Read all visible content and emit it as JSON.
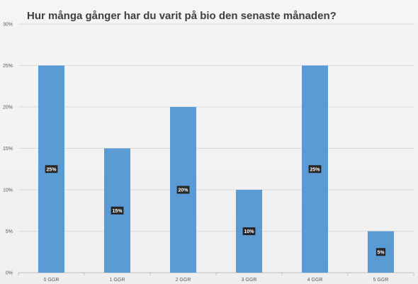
{
  "chart_data": {
    "type": "bar",
    "title": "Hur många gånger har du varit på bio den senaste månaden?",
    "categories": [
      "0 GGR",
      "1 GGR",
      "2 GGR",
      "3 GGR",
      "4 GGR",
      "5 GGR"
    ],
    "values": [
      25,
      15,
      20,
      10,
      25,
      5
    ],
    "data_labels": [
      "25%",
      "15%",
      "20%",
      "10%",
      "25%",
      "5%"
    ],
    "y_ticks": [
      0,
      5,
      10,
      15,
      20,
      25,
      30
    ],
    "y_tick_labels": [
      "0%",
      "5%",
      "10%",
      "15%",
      "20%",
      "25%",
      "30%"
    ],
    "ylim": [
      0,
      30
    ],
    "xlabel": "",
    "ylabel": "",
    "grid": true,
    "legend": "none",
    "colors": {
      "bar": "#5b9bd5",
      "gridline": "#d9d9d9",
      "axis": "#bfbfbf",
      "label_bg": "#262626"
    }
  }
}
